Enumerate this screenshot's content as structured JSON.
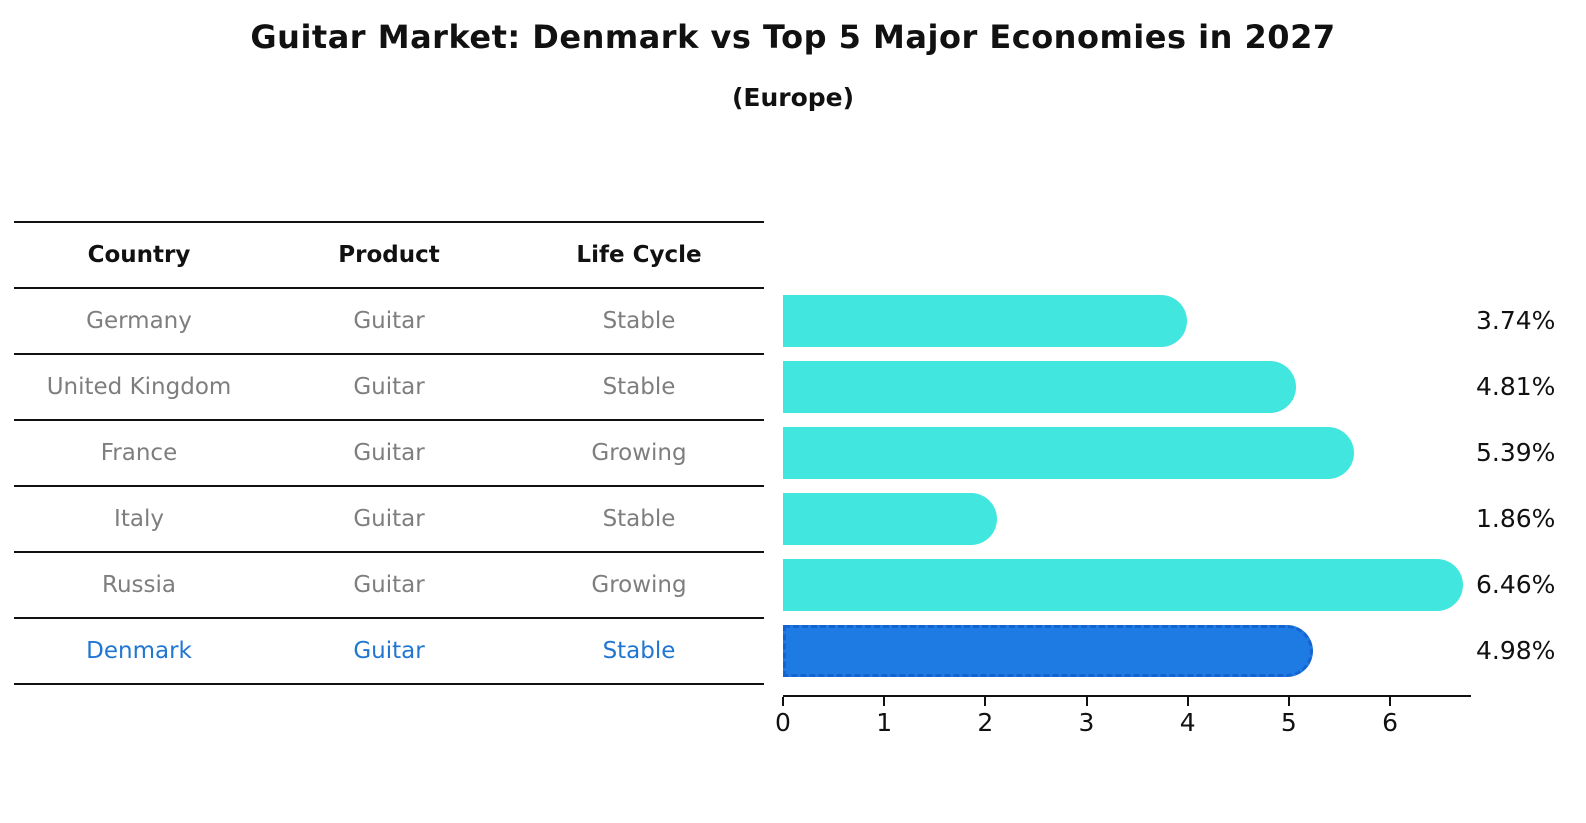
{
  "title": "Guitar Market: Denmark vs Top 5 Major Economies in 2027",
  "subtitle": "(Europe)",
  "table": {
    "headers": [
      "Country",
      "Product",
      "Life Cycle"
    ],
    "rows": [
      {
        "country": "Germany",
        "product": "Guitar",
        "life_cycle": "Stable",
        "highlight": false
      },
      {
        "country": "United Kingdom",
        "product": "Guitar",
        "life_cycle": "Stable",
        "highlight": false
      },
      {
        "country": "France",
        "product": "Guitar",
        "life_cycle": "Growing",
        "highlight": false
      },
      {
        "country": "Italy",
        "product": "Guitar",
        "life_cycle": "Stable",
        "highlight": false
      },
      {
        "country": "Russia",
        "product": "Guitar",
        "life_cycle": "Growing",
        "highlight": false
      },
      {
        "country": "Denmark",
        "product": "Guitar",
        "life_cycle": "Stable",
        "highlight": true
      }
    ]
  },
  "chart_data": {
    "type": "bar",
    "orientation": "horizontal",
    "title": "Guitar Market: Denmark vs Top 5 Major Economies in 2027",
    "subtitle": "(Europe)",
    "categories": [
      "Germany",
      "United Kingdom",
      "France",
      "Italy",
      "Russia",
      "Denmark"
    ],
    "values": [
      3.74,
      4.81,
      5.39,
      1.86,
      6.46,
      4.98
    ],
    "value_labels": [
      "3.74%",
      "4.81%",
      "5.39%",
      "1.86%",
      "6.46%",
      "4.98%"
    ],
    "x_ticks": [
      0,
      1,
      2,
      3,
      4,
      5,
      6
    ],
    "xlim": [
      0,
      6.8
    ],
    "xlabel": "",
    "ylabel": "",
    "grid": false,
    "legend": false,
    "bar_color": "#41e6de",
    "highlight_bar_color": "#1e7be4",
    "highlight_border_color": "#1563cf",
    "highlight_index": 5
  },
  "colors": {
    "background": "#ffffff",
    "table_text": "#7e7e7e",
    "highlight_text": "#2176d2",
    "heading_text": "#111111",
    "rule": "#111111"
  }
}
